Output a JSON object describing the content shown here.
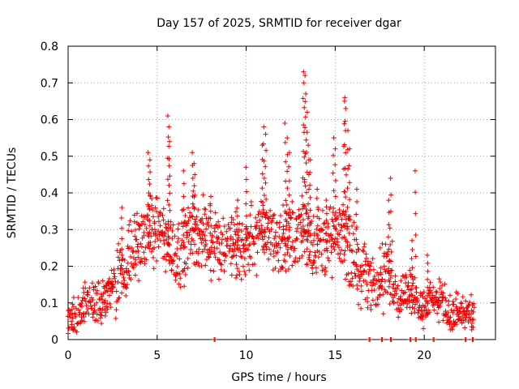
{
  "chart_data": {
    "type": "scatter",
    "title": "Day 157 of 2025, SRMTID for receiver dgar",
    "xlabel": "GPS time / hours",
    "ylabel": "SRMTID / TECUs",
    "xlim": [
      0,
      24
    ],
    "ylim": [
      0,
      0.8
    ],
    "xticks": [
      0,
      5,
      10,
      15,
      20
    ],
    "xtick_labels": [
      "0",
      "5",
      "10",
      "15",
      "20"
    ],
    "yticks": [
      0,
      0.1,
      0.2,
      0.3,
      0.4,
      0.5,
      0.6,
      0.7,
      0.8
    ],
    "ytick_labels": [
      "0",
      "0.1",
      "0.2",
      "0.3",
      "0.4",
      "0.5",
      "0.6",
      "0.7",
      "0.8"
    ],
    "grid": true,
    "marker": "+",
    "marker_color": "#ee0000",
    "series": [
      {
        "name": "SRMTID",
        "envelope_description": "dense cloud of observations, approximated by trend + spread",
        "trend": [
          [
            0.0,
            0.05
          ],
          [
            0.5,
            0.07
          ],
          [
            1.0,
            0.11
          ],
          [
            1.5,
            0.09
          ],
          [
            2.0,
            0.11
          ],
          [
            2.5,
            0.15
          ],
          [
            3.0,
            0.19
          ],
          [
            3.5,
            0.23
          ],
          [
            4.0,
            0.26
          ],
          [
            4.5,
            0.29
          ],
          [
            5.0,
            0.3
          ],
          [
            5.5,
            0.27
          ],
          [
            6.0,
            0.24
          ],
          [
            6.5,
            0.25
          ],
          [
            7.0,
            0.3
          ],
          [
            7.5,
            0.29
          ],
          [
            8.0,
            0.27
          ],
          [
            8.5,
            0.26
          ],
          [
            9.0,
            0.25
          ],
          [
            9.5,
            0.25
          ],
          [
            10.0,
            0.27
          ],
          [
            10.5,
            0.28
          ],
          [
            11.0,
            0.3
          ],
          [
            11.5,
            0.27
          ],
          [
            12.0,
            0.27
          ],
          [
            12.5,
            0.28
          ],
          [
            13.0,
            0.3
          ],
          [
            13.5,
            0.29
          ],
          [
            14.0,
            0.26
          ],
          [
            14.5,
            0.27
          ],
          [
            15.0,
            0.26
          ],
          [
            15.5,
            0.28
          ],
          [
            16.0,
            0.22
          ],
          [
            16.5,
            0.18
          ],
          [
            17.0,
            0.15
          ],
          [
            17.5,
            0.16
          ],
          [
            18.0,
            0.18
          ],
          [
            18.5,
            0.12
          ],
          [
            19.0,
            0.14
          ],
          [
            19.5,
            0.11
          ],
          [
            20.0,
            0.09
          ],
          [
            20.5,
            0.11
          ],
          [
            21.0,
            0.1
          ],
          [
            21.5,
            0.07
          ],
          [
            22.0,
            0.07
          ],
          [
            22.5,
            0.06
          ],
          [
            22.8,
            0.05
          ]
        ],
        "spread": 0.06,
        "spikes": [
          [
            4.5,
            0.51
          ],
          [
            4.6,
            0.49
          ],
          [
            5.6,
            0.61
          ],
          [
            5.65,
            0.58
          ],
          [
            5.7,
            0.54
          ],
          [
            6.5,
            0.46
          ],
          [
            7.0,
            0.51
          ],
          [
            7.1,
            0.48
          ],
          [
            10.0,
            0.47
          ],
          [
            10.9,
            0.53
          ],
          [
            11.0,
            0.58
          ],
          [
            11.1,
            0.56
          ],
          [
            12.2,
            0.59
          ],
          [
            12.3,
            0.55
          ],
          [
            12.4,
            0.51
          ],
          [
            13.2,
            0.73
          ],
          [
            13.25,
            0.7
          ],
          [
            13.3,
            0.72
          ],
          [
            13.35,
            0.67
          ],
          [
            13.4,
            0.62
          ],
          [
            13.5,
            0.53
          ],
          [
            13.6,
            0.49
          ],
          [
            14.0,
            0.41
          ],
          [
            14.9,
            0.55
          ],
          [
            15.0,
            0.52
          ],
          [
            15.5,
            0.65
          ],
          [
            15.55,
            0.66
          ],
          [
            15.6,
            0.63
          ],
          [
            15.7,
            0.57
          ],
          [
            15.8,
            0.52
          ],
          [
            16.2,
            0.41
          ],
          [
            18.1,
            0.44
          ],
          [
            18.0,
            0.38
          ],
          [
            19.5,
            0.46
          ],
          [
            19.3,
            0.27
          ],
          [
            20.2,
            0.23
          ],
          [
            3.0,
            0.36
          ],
          [
            8.0,
            0.39
          ],
          [
            9.5,
            0.38
          ],
          [
            14.5,
            0.38
          ]
        ],
        "zero_markers_x": [
          8.2,
          16.9,
          17.6,
          18.1,
          19.2,
          19.5,
          20.5,
          22.3,
          22.7
        ]
      }
    ]
  }
}
